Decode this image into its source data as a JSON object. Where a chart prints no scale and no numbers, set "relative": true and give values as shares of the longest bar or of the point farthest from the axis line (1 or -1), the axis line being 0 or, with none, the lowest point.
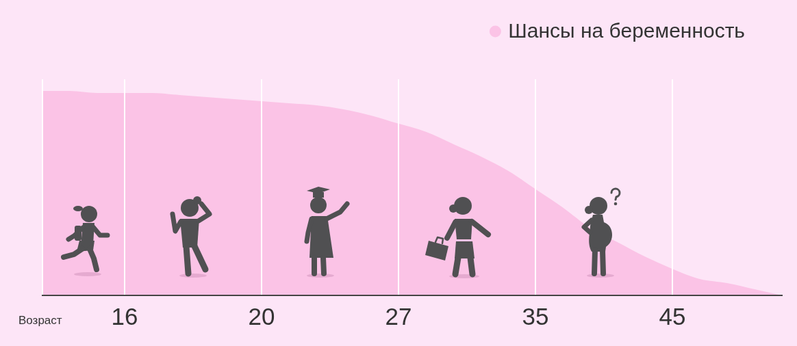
{
  "chart_data": {
    "type": "area",
    "relative": true,
    "categories": [
      null,
      null,
      null,
      "16",
      null,
      null,
      null,
      null,
      "20",
      null,
      null,
      null,
      null,
      "27",
      null,
      null,
      null,
      null,
      "35",
      null,
      null,
      null,
      null,
      "45",
      null,
      null,
      null,
      null
    ],
    "series": [
      {
        "name": "Шансы на беременность",
        "color": "#fbc3e6",
        "values": [
          1,
          1,
          0.99,
          0.99,
          0.99,
          0.98,
          0.97,
          0.96,
          0.95,
          0.94,
          0.93,
          0.91,
          0.88,
          0.84,
          0.8,
          0.74,
          0.68,
          0.61,
          0.52,
          0.43,
          0.33,
          0.26,
          0.19,
          0.13,
          0.08,
          0.06,
          0.03,
          0
        ]
      }
    ],
    "xlabel": "Возраст",
    "legend": "top right",
    "grid": "x"
  }
}
